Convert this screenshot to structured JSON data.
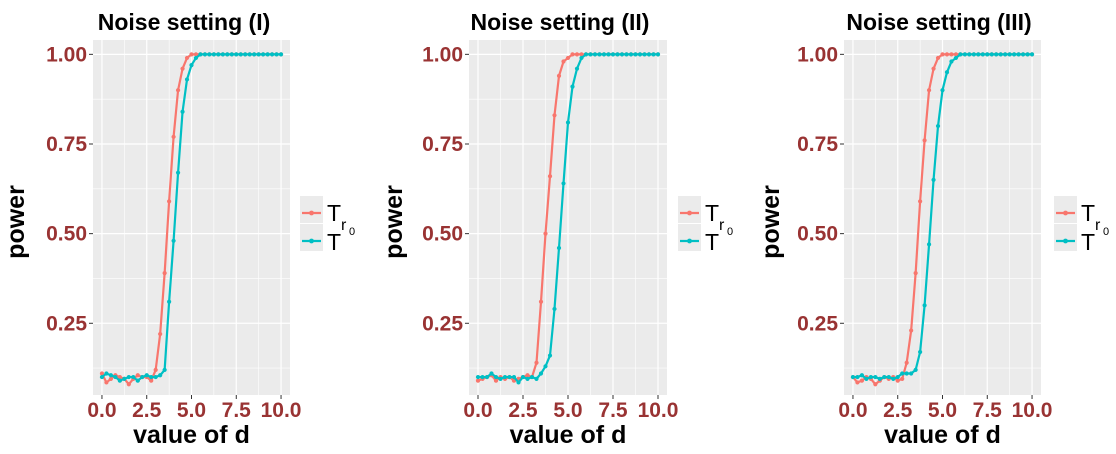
{
  "colors": {
    "tr0": "#F8766D",
    "t": "#00BFC4",
    "tick_label": "#993333",
    "panel_bg": "#EBEBEB",
    "grid": "#FFFFFF"
  },
  "chart_data": [
    {
      "type": "line",
      "title": "Noise setting (I)",
      "xlabel": "value of d",
      "ylabel": "power",
      "xlim": [
        -0.5,
        10.5
      ],
      "ylim": [
        0.05,
        1.04
      ],
      "xticks": [
        "0.0",
        "2.5",
        "5.0",
        "7.5",
        "10.0"
      ],
      "yticks": [
        "0.25",
        "0.50",
        "0.75",
        "1.00"
      ],
      "grid": true,
      "legend": {
        "position": "right",
        "labels": [
          "T",
          "r",
          "0",
          "T"
        ]
      },
      "x": [
        0,
        0.25,
        0.5,
        0.75,
        1,
        1.25,
        1.5,
        1.75,
        2,
        2.25,
        2.5,
        2.75,
        3,
        3.25,
        3.5,
        3.75,
        4,
        4.25,
        4.5,
        4.75,
        5,
        5.25,
        5.5,
        5.75,
        6,
        6.25,
        6.5,
        6.75,
        7,
        7.25,
        7.5,
        7.75,
        8,
        8.25,
        8.5,
        8.75,
        9,
        9.25,
        9.5,
        9.75,
        10
      ],
      "series": [
        {
          "values": [
            0.11,
            0.085,
            0.095,
            0.105,
            0.1,
            0.095,
            0.08,
            0.095,
            0.105,
            0.1,
            0.1,
            0.09,
            0.12,
            0.22,
            0.39,
            0.59,
            0.77,
            0.9,
            0.96,
            0.99,
            1.0,
            1.0,
            1.0,
            1.0,
            1.0,
            1.0,
            1.0,
            1.0,
            1.0,
            1.0,
            1.0,
            1.0,
            1.0,
            1.0,
            1.0,
            1.0,
            1.0,
            1.0,
            1.0,
            1.0,
            1.0
          ]
        },
        {
          "values": [
            0.1,
            0.11,
            0.105,
            0.1,
            0.09,
            0.095,
            0.1,
            0.1,
            0.09,
            0.1,
            0.105,
            0.1,
            0.1,
            0.105,
            0.12,
            0.31,
            0.48,
            0.67,
            0.84,
            0.93,
            0.97,
            0.99,
            1.0,
            1.0,
            1.0,
            1.0,
            1.0,
            1.0,
            1.0,
            1.0,
            1.0,
            1.0,
            1.0,
            1.0,
            1.0,
            1.0,
            1.0,
            1.0,
            1.0,
            1.0,
            1.0
          ]
        }
      ]
    },
    {
      "type": "line",
      "title": "Noise setting (II)",
      "xlabel": "value of d",
      "ylabel": "power",
      "xlim": [
        -0.5,
        10.5
      ],
      "ylim": [
        0.05,
        1.04
      ],
      "xticks": [
        "0.0",
        "2.5",
        "5.0",
        "7.5",
        "10.0"
      ],
      "yticks": [
        "0.25",
        "0.50",
        "0.75",
        "1.00"
      ],
      "grid": true,
      "legend": {
        "position": "right",
        "labels": [
          "T",
          "r",
          "0",
          "T"
        ]
      },
      "x": [
        0,
        0.25,
        0.5,
        0.75,
        1,
        1.25,
        1.5,
        1.75,
        2,
        2.25,
        2.5,
        2.75,
        3,
        3.25,
        3.5,
        3.75,
        4,
        4.25,
        4.5,
        4.75,
        5,
        5.25,
        5.5,
        5.75,
        6,
        6.25,
        6.5,
        6.75,
        7,
        7.25,
        7.5,
        7.75,
        8,
        8.25,
        8.5,
        8.75,
        9,
        9.25,
        9.5,
        9.75,
        10
      ],
      "series": [
        {
          "values": [
            0.09,
            0.095,
            0.1,
            0.105,
            0.09,
            0.1,
            0.095,
            0.1,
            0.09,
            0.095,
            0.1,
            0.105,
            0.1,
            0.14,
            0.31,
            0.5,
            0.66,
            0.83,
            0.94,
            0.98,
            0.99,
            1.0,
            1.0,
            1.0,
            1.0,
            1.0,
            1.0,
            1.0,
            1.0,
            1.0,
            1.0,
            1.0,
            1.0,
            1.0,
            1.0,
            1.0,
            1.0,
            1.0,
            1.0,
            1.0,
            1.0
          ]
        },
        {
          "values": [
            0.1,
            0.1,
            0.1,
            0.11,
            0.1,
            0.095,
            0.1,
            0.1,
            0.1,
            0.085,
            0.1,
            0.095,
            0.1,
            0.095,
            0.11,
            0.13,
            0.16,
            0.29,
            0.46,
            0.64,
            0.81,
            0.91,
            0.96,
            0.99,
            1.0,
            1.0,
            1.0,
            1.0,
            1.0,
            1.0,
            1.0,
            1.0,
            1.0,
            1.0,
            1.0,
            1.0,
            1.0,
            1.0,
            1.0,
            1.0,
            1.0
          ]
        }
      ]
    },
    {
      "type": "line",
      "title": "Noise setting (III)",
      "xlabel": "value of d",
      "ylabel": "power",
      "xlim": [
        -0.5,
        10.5
      ],
      "ylim": [
        0.05,
        1.04
      ],
      "xticks": [
        "0.0",
        "2.5",
        "5.0",
        "7.5",
        "10.0"
      ],
      "yticks": [
        "0.25",
        "0.50",
        "0.75",
        "1.00"
      ],
      "grid": true,
      "legend": {
        "position": "right",
        "labels": [
          "T",
          "r",
          "0",
          "T"
        ]
      },
      "x": [
        0,
        0.25,
        0.5,
        0.75,
        1,
        1.25,
        1.5,
        1.75,
        2,
        2.25,
        2.5,
        2.75,
        3,
        3.25,
        3.5,
        3.75,
        4,
        4.25,
        4.5,
        4.75,
        5,
        5.25,
        5.5,
        5.75,
        6,
        6.25,
        6.5,
        6.75,
        7,
        7.25,
        7.5,
        7.75,
        8,
        8.25,
        8.5,
        8.75,
        9,
        9.25,
        9.5,
        9.75,
        10
      ],
      "series": [
        {
          "values": [
            0.1,
            0.085,
            0.09,
            0.1,
            0.095,
            0.08,
            0.09,
            0.1,
            0.095,
            0.1,
            0.09,
            0.095,
            0.14,
            0.23,
            0.39,
            0.59,
            0.76,
            0.9,
            0.96,
            0.99,
            1.0,
            1.0,
            1.0,
            1.0,
            1.0,
            1.0,
            1.0,
            1.0,
            1.0,
            1.0,
            1.0,
            1.0,
            1.0,
            1.0,
            1.0,
            1.0,
            1.0,
            1.0,
            1.0,
            1.0,
            1.0
          ]
        },
        {
          "values": [
            0.1,
            0.1,
            0.105,
            0.095,
            0.1,
            0.1,
            0.095,
            0.1,
            0.1,
            0.095,
            0.1,
            0.11,
            0.11,
            0.11,
            0.12,
            0.17,
            0.3,
            0.47,
            0.65,
            0.8,
            0.9,
            0.95,
            0.98,
            0.99,
            1.0,
            1.0,
            1.0,
            1.0,
            1.0,
            1.0,
            1.0,
            1.0,
            1.0,
            1.0,
            1.0,
            1.0,
            1.0,
            1.0,
            1.0,
            1.0,
            1.0
          ]
        }
      ]
    }
  ]
}
